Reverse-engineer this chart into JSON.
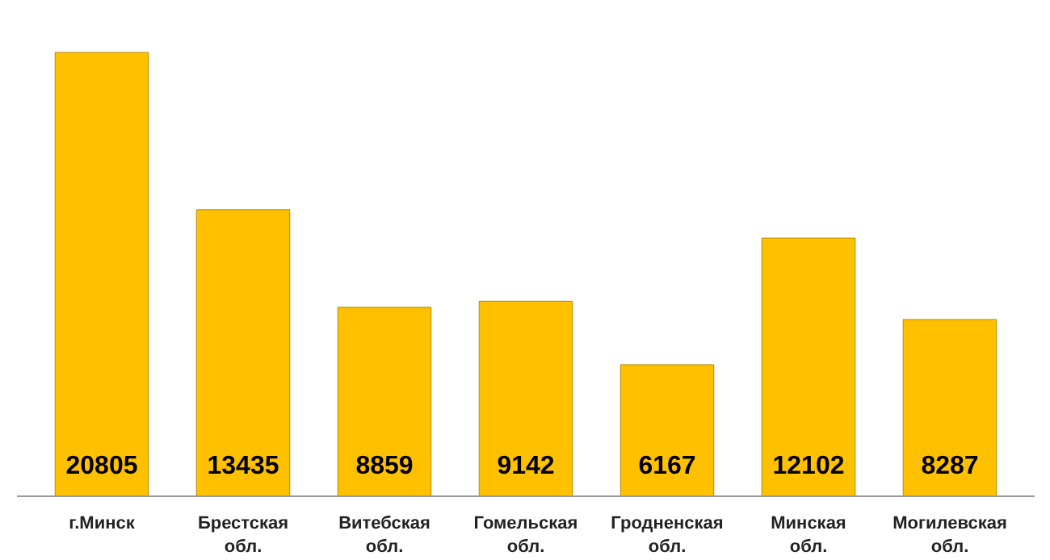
{
  "chart_data": {
    "type": "bar",
    "categories": [
      "г.Минск",
      "Брестская обл.",
      "Витебская обл.",
      "Гомельская обл.",
      "Гродненская обл.",
      "Минская обл.",
      "Могилевская обл."
    ],
    "values": [
      20805,
      13435,
      8859,
      9142,
      6167,
      12102,
      8287
    ],
    "color": "#ffc000",
    "data_labels": true
  }
}
